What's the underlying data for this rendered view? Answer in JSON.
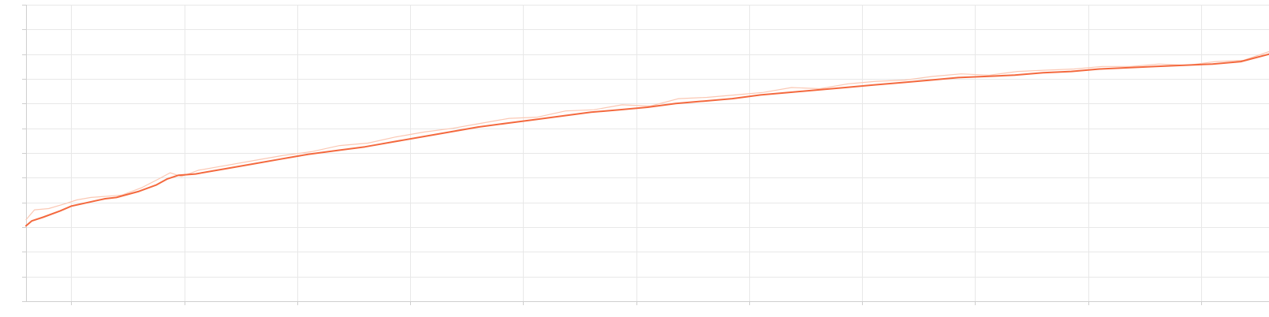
{
  "chart_data": {
    "type": "line",
    "title": "",
    "xlabel": "",
    "ylabel": "",
    "xlim": [
      0,
      22000
    ],
    "ylim": [
      0,
      12
    ],
    "x_ticks": [
      800,
      2800,
      4800,
      6800,
      8800,
      10800,
      12800,
      14800,
      16800,
      18800,
      20800
    ],
    "y_ticks": [
      0,
      1,
      2,
      3,
      4,
      5,
      6,
      7,
      8,
      9,
      10,
      11,
      12
    ],
    "grid": true,
    "legend": "none",
    "colors": {
      "smoothed": "#f4693e",
      "raw": "#fbc8b4",
      "grid": "#e8e8e8",
      "axis": "#cfcfcf"
    },
    "series": [
      {
        "role": "smoothed",
        "x": [
          0,
          100,
          300,
          600,
          800,
          1100,
          1400,
          1600,
          2000,
          2300,
          2500,
          2700,
          3000,
          3500,
          4000,
          4500,
          5000,
          5500,
          6000,
          6500,
          7000,
          7500,
          8000,
          8500,
          9000,
          9500,
          10000,
          10500,
          11000,
          11500,
          12000,
          12500,
          13000,
          13500,
          14000,
          14500,
          15000,
          15500,
          16000,
          16500,
          17000,
          17500,
          18000,
          18500,
          19000,
          19500,
          20000,
          20500,
          21000,
          21500,
          22000
        ],
        "y": [
          3.05,
          3.25,
          3.4,
          3.65,
          3.85,
          4.0,
          4.15,
          4.2,
          4.45,
          4.7,
          4.95,
          5.1,
          5.15,
          5.35,
          5.55,
          5.75,
          5.95,
          6.1,
          6.25,
          6.45,
          6.65,
          6.85,
          7.05,
          7.2,
          7.35,
          7.5,
          7.65,
          7.75,
          7.85,
          8.0,
          8.1,
          8.2,
          8.35,
          8.45,
          8.55,
          8.65,
          8.75,
          8.85,
          8.95,
          9.05,
          9.1,
          9.15,
          9.25,
          9.3,
          9.4,
          9.45,
          9.5,
          9.55,
          9.6,
          9.7,
          10.0
        ]
      },
      {
        "role": "raw",
        "x": [
          0,
          150,
          400,
          700,
          900,
          1150,
          1450,
          1700,
          2050,
          2350,
          2550,
          2750,
          3050,
          3550,
          4050,
          4550,
          5050,
          5550,
          6050,
          6550,
          7050,
          7550,
          8050,
          8550,
          9050,
          9550,
          10050,
          10550,
          11050,
          11550,
          12050,
          12550,
          13050,
          13550,
          14050,
          14550,
          15050,
          15550,
          16050,
          16550,
          17050,
          17550,
          18050,
          18550,
          19050,
          19550,
          20050,
          20550,
          21050,
          21550,
          22000
        ],
        "y": [
          3.3,
          3.7,
          3.75,
          3.95,
          4.1,
          4.2,
          4.25,
          4.3,
          4.6,
          4.95,
          5.2,
          5.05,
          5.3,
          5.5,
          5.7,
          5.9,
          6.05,
          6.3,
          6.4,
          6.65,
          6.85,
          7.0,
          7.2,
          7.4,
          7.45,
          7.7,
          7.75,
          7.95,
          7.9,
          8.2,
          8.25,
          8.35,
          8.45,
          8.65,
          8.6,
          8.8,
          8.9,
          8.95,
          9.1,
          9.2,
          9.15,
          9.3,
          9.35,
          9.4,
          9.5,
          9.5,
          9.6,
          9.55,
          9.7,
          9.75,
          10.1
        ]
      }
    ]
  }
}
